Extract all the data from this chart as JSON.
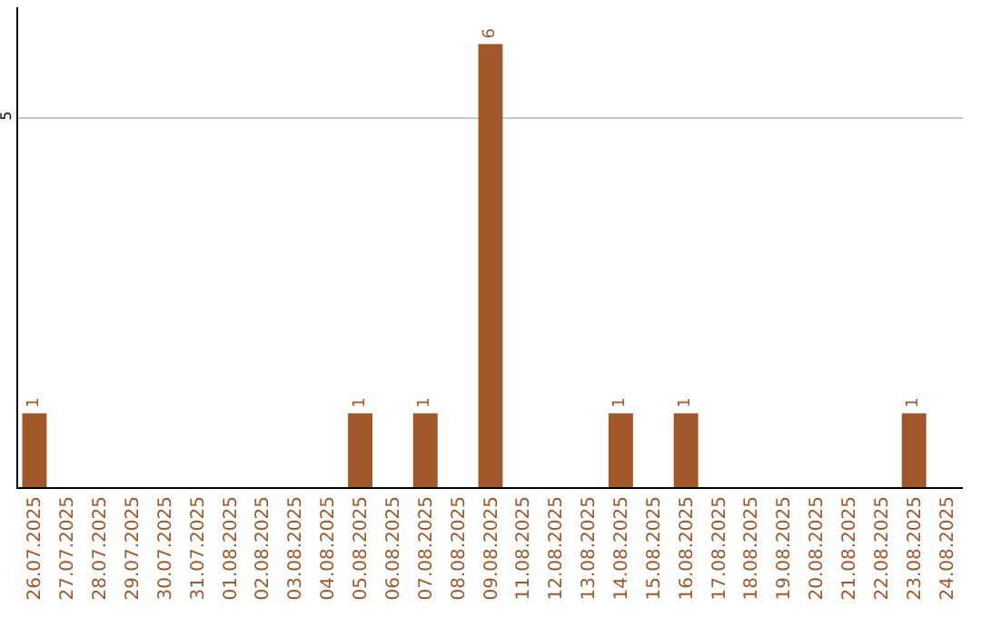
{
  "chart_data": {
    "type": "bar",
    "categories": [
      "26.07.2025",
      "27.07.2025",
      "28.07.2025",
      "29.07.2025",
      "30.07.2025",
      "31.07.2025",
      "01.08.2025",
      "02.08.2025",
      "03.08.2025",
      "04.08.2025",
      "05.08.2025",
      "06.08.2025",
      "07.08.2025",
      "08.08.2025",
      "09.08.2025",
      "11.08.2025",
      "12.08.2025",
      "13.08.2025",
      "14.08.2025",
      "15.08.2025",
      "16.08.2025",
      "17.08.2025",
      "18.08.2025",
      "19.08.2025",
      "20.08.2025",
      "21.08.2025",
      "22.08.2025",
      "23.08.2025",
      "24.08.2025"
    ],
    "values": [
      1,
      0,
      0,
      0,
      0,
      0,
      0,
      0,
      0,
      0,
      1,
      0,
      1,
      0,
      6,
      0,
      0,
      0,
      1,
      0,
      1,
      0,
      0,
      0,
      0,
      0,
      0,
      1,
      0
    ],
    "value_labels": [
      "1",
      null,
      null,
      null,
      null,
      null,
      null,
      null,
      null,
      null,
      "1",
      null,
      "1",
      null,
      "6",
      null,
      null,
      null,
      "1",
      null,
      "1",
      null,
      null,
      null,
      null,
      null,
      null,
      "1",
      null
    ],
    "color": "#a0572a",
    "ylim": [
      0,
      6.5
    ],
    "yticks": [
      5
    ],
    "grid": "y"
  }
}
